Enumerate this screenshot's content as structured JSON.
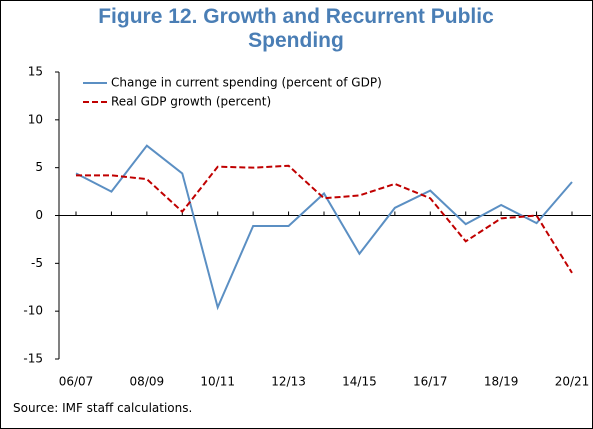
{
  "chart_data": {
    "type": "line",
    "title": "Figure 12. Growth and Recurrent Public Spending",
    "source": "Source: IMF staff calculations.",
    "categories": [
      "06/07",
      null,
      "08/09",
      null,
      "10/11",
      null,
      "12/13",
      null,
      "14/15",
      null,
      "16/17",
      null,
      "18/19",
      null,
      "20/21"
    ],
    "series": [
      {
        "name": "Change in current spending (percent of GDP)",
        "color": "#5b8fc3",
        "dash": false,
        "values": [
          4.4,
          2.5,
          7.3,
          4.4,
          -9.6,
          -1.1,
          -1.1,
          2.3,
          -4.0,
          0.8,
          2.6,
          -0.9,
          1.1,
          -0.8,
          3.5
        ]
      },
      {
        "name": "Real GDP growth (percent)",
        "color": "#c00000",
        "dash": true,
        "values": [
          4.2,
          4.2,
          3.8,
          0.4,
          5.1,
          5.0,
          5.2,
          1.8,
          2.1,
          3.3,
          1.8,
          -2.7,
          -0.3,
          0.0,
          -6.0
        ]
      }
    ],
    "ylim": [
      -15,
      15
    ],
    "yticks": [
      -15,
      -10,
      -5,
      0,
      5,
      10,
      15
    ],
    "grid": false,
    "legend": "upper left"
  }
}
